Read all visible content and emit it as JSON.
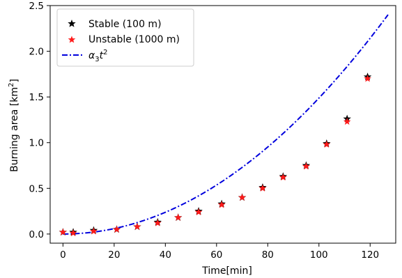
{
  "chart_data": {
    "type": "scatter",
    "xlabel": "Time[min]",
    "ylabel": "Burning area [km",
    "ylabel_sup": "2",
    "ylabel_end": "]",
    "xlim": [
      -5,
      130
    ],
    "ylim": [
      -0.1,
      2.5
    ],
    "xticks": [
      0,
      20,
      40,
      60,
      80,
      100,
      120
    ],
    "xtick_labels": [
      "0",
      "20",
      "40",
      "60",
      "80",
      "100",
      "120"
    ],
    "yticks": [
      0.0,
      0.5,
      1.0,
      1.5,
      2.0,
      2.5
    ],
    "ytick_labels": [
      "0.0",
      "0.5",
      "1.0",
      "1.5",
      "2.0",
      "2.5"
    ],
    "grid": false,
    "legend_position": "top-left",
    "series": [
      {
        "name": "Stable (100 m)",
        "kind": "scatter",
        "marker": "star",
        "color": "#000000",
        "x": [
          0,
          4,
          12,
          21,
          29,
          37,
          45,
          53,
          62,
          70,
          78,
          86,
          95,
          103,
          111,
          119
        ],
        "y": [
          0.02,
          0.02,
          0.04,
          0.05,
          0.08,
          0.13,
          0.18,
          0.25,
          0.33,
          0.4,
          0.51,
          0.63,
          0.75,
          0.99,
          1.26,
          1.72
        ]
      },
      {
        "name": "Unstable (1000 m)",
        "kind": "scatter",
        "marker": "star",
        "color": "#ff1a1a",
        "x": [
          0,
          4,
          12,
          21,
          29,
          37,
          45,
          53,
          62,
          70,
          78,
          86,
          95,
          103,
          111,
          119
        ],
        "y": [
          0.02,
          0.01,
          0.03,
          0.05,
          0.08,
          0.12,
          0.18,
          0.24,
          0.32,
          0.4,
          0.5,
          0.62,
          0.74,
          0.98,
          1.23,
          1.7
        ]
      },
      {
        "name_base": "α",
        "name_sub": "3",
        "name_mid": "t",
        "name_sup": "2",
        "kind": "line",
        "style": "dashdot",
        "color": "#0000dd",
        "x": [
          0,
          10,
          20,
          30,
          40,
          50,
          60,
          70,
          80,
          90,
          100,
          110,
          120,
          127
        ],
        "y": [
          0.0,
          0.015,
          0.06,
          0.134,
          0.238,
          0.372,
          0.536,
          0.729,
          0.952,
          1.205,
          1.488,
          1.8,
          2.142,
          2.4
        ]
      }
    ]
  }
}
